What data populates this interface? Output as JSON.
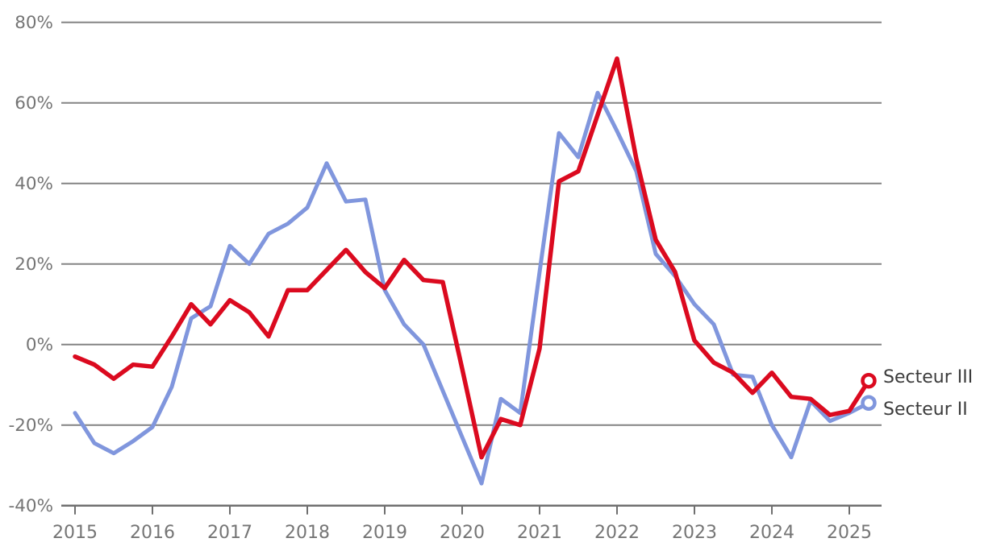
{
  "chart_data": {
    "type": "line",
    "title": "",
    "xlabel": "",
    "ylabel": "",
    "x_start_year": 2015,
    "x_step_years": 0.25,
    "x_tick_labels": [
      "2015",
      "2016",
      "2017",
      "2018",
      "2019",
      "2020",
      "2021",
      "2022",
      "2023",
      "2024",
      "2025"
    ],
    "y_tick_labels": [
      "80%",
      "60%",
      "40%",
      "20%",
      "0%",
      "-20%",
      "-40%"
    ],
    "y_tick_values": [
      80,
      60,
      40,
      20,
      0,
      -20,
      -40
    ],
    "ylim": [
      -40,
      80
    ],
    "grid": true,
    "legend_position": "right-of-line-ends",
    "series": [
      {
        "name": "Secteur II",
        "color": "#8096dd",
        "end_marker": "open-circle",
        "values": [
          -17,
          -24.5,
          -27,
          -24,
          -20.5,
          -10.5,
          6.5,
          9.5,
          24.5,
          20,
          27.5,
          30,
          34,
          45,
          35.5,
          36,
          13.5,
          5,
          0,
          -11.5,
          -23,
          -34.5,
          -13.5,
          -17,
          18,
          52.5,
          46.5,
          62.5,
          53,
          43,
          22.5,
          17,
          10,
          5,
          -7.5,
          -8,
          -20,
          -28,
          -14,
          -19,
          -17,
          -14.5
        ]
      },
      {
        "name": "Secteur III",
        "color": "#db0a1f",
        "end_marker": "open-circle",
        "values": [
          -3,
          -5,
          -8.5,
          -5,
          -5.5,
          2,
          10,
          5,
          11,
          8,
          2,
          13.5,
          13.5,
          18.5,
          23.5,
          18,
          14,
          21,
          16,
          15.5,
          -6,
          -28,
          -18.5,
          -20,
          -1,
          40.5,
          43,
          57,
          71,
          46,
          26,
          18,
          1,
          -4.5,
          -7,
          -12,
          -7,
          -13,
          -13.5,
          -17.5,
          -16.5,
          -9
        ]
      }
    ]
  },
  "colors": {
    "background": "#ffffff",
    "gridline": "#848484",
    "axis_line": "#6f6f6f",
    "tick_label": "#757575",
    "legend_text": "#3c3c3c",
    "secteur_ii": "#8096dd",
    "secteur_iii": "#db0a1f"
  }
}
